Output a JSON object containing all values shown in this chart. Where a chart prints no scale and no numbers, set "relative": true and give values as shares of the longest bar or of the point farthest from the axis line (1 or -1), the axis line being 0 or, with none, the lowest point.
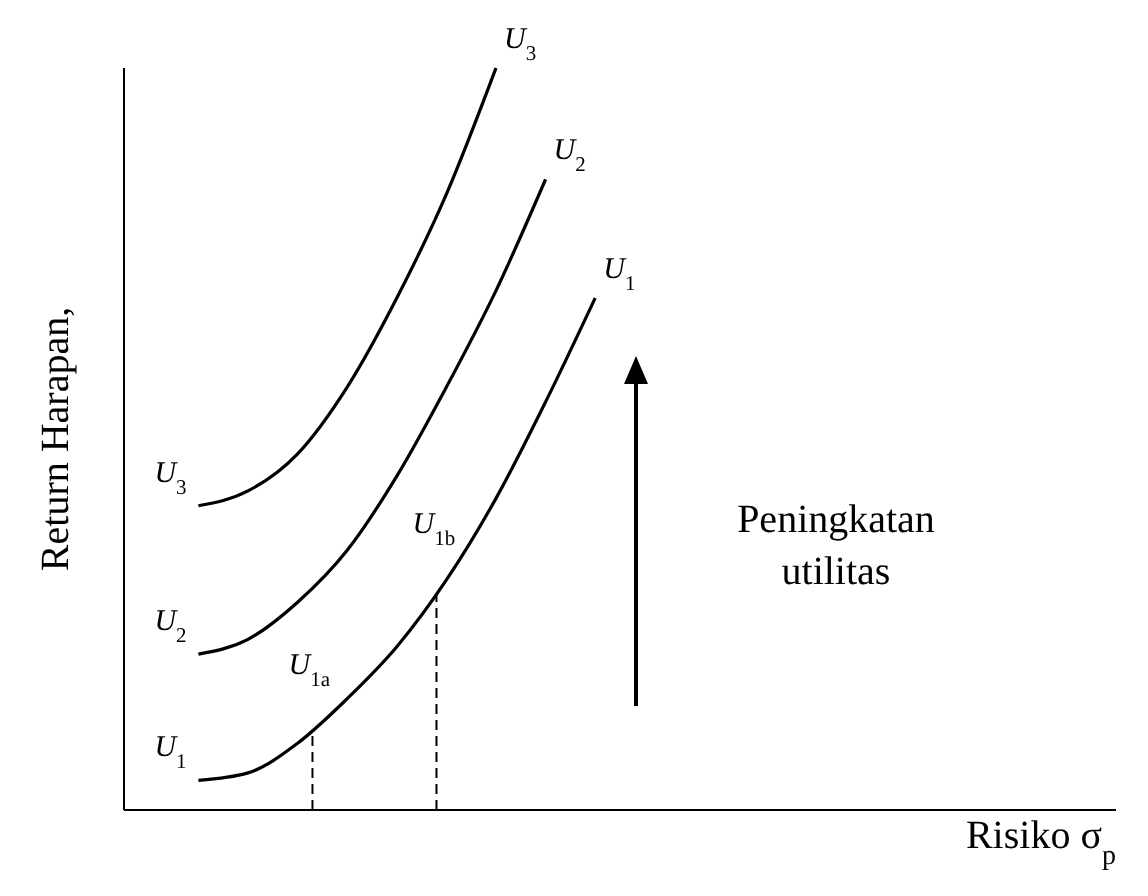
{
  "chart_data": {
    "type": "line",
    "relative": true,
    "xlabel": "Risiko σ$_{p}$",
    "ylabel": "Return Harapan,",
    "categories": [
      null,
      null,
      null,
      null,
      null,
      null,
      null,
      null,
      null,
      null,
      null,
      null,
      null,
      null,
      null,
      null,
      null,
      null,
      null,
      null
    ],
    "series": [
      {
        "name": "U$_{1}$",
        "color": "#000000",
        "values": [
          null,
          0.04,
          0.05,
          0.09,
          0.15,
          0.22,
          0.31,
          0.42,
          0.55,
          0.69,
          null,
          null,
          null,
          null,
          null,
          null,
          null,
          null,
          null,
          null
        ]
      },
      {
        "name": "U$_{2}$",
        "color": "#000000",
        "values": [
          null,
          0.21,
          0.23,
          0.28,
          0.35,
          0.45,
          0.57,
          0.7,
          0.85,
          null,
          null,
          null,
          null,
          null,
          null,
          null,
          null,
          null,
          null,
          null
        ]
      },
      {
        "name": "U$_{3}$",
        "color": "#000000",
        "values": [
          null,
          0.41,
          0.43,
          0.48,
          0.57,
          0.69,
          0.83,
          1.0,
          null,
          null,
          null,
          null,
          null,
          null,
          null,
          null,
          null,
          null,
          null,
          null
        ]
      }
    ],
    "annotations": [
      "U$_{1a}$",
      "U$_{1b}$",
      "Peningkatan utilitas"
    ],
    "marker": "none",
    "line_style": "solid"
  }
}
